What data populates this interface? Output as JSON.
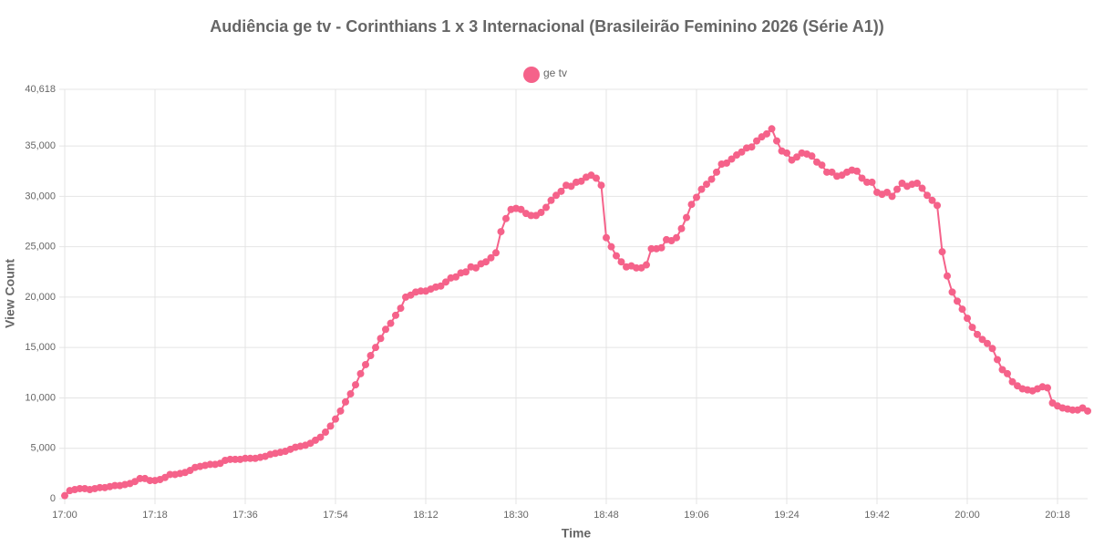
{
  "chart_data": {
    "type": "line",
    "title": "Audiência ge tv - Corinthians 1 x 3 Internacional (Brasileirão Feminino 2026 (Série A1))",
    "xlabel": "Time",
    "ylabel": "View Count",
    "x": [
      "17:00",
      "17:01",
      "17:02",
      "17:03",
      "17:04",
      "17:05",
      "17:06",
      "17:07",
      "17:08",
      "17:09",
      "17:10",
      "17:11",
      "17:12",
      "17:13",
      "17:14",
      "17:15",
      "17:16",
      "17:17",
      "17:18",
      "17:19",
      "17:20",
      "17:21",
      "17:22",
      "17:23",
      "17:24",
      "17:25",
      "17:26",
      "17:27",
      "17:28",
      "17:29",
      "17:30",
      "17:31",
      "17:32",
      "17:33",
      "17:34",
      "17:35",
      "17:36",
      "17:37",
      "17:38",
      "17:39",
      "17:40",
      "17:41",
      "17:42",
      "17:43",
      "17:44",
      "17:45",
      "17:46",
      "17:47",
      "17:48",
      "17:49",
      "17:50",
      "17:51",
      "17:52",
      "17:53",
      "17:54",
      "17:55",
      "17:56",
      "17:57",
      "17:58",
      "17:59",
      "18:00",
      "18:01",
      "18:02",
      "18:03",
      "18:04",
      "18:05",
      "18:06",
      "18:07",
      "18:08",
      "18:09",
      "18:10",
      "18:11",
      "18:12",
      "18:13",
      "18:14",
      "18:15",
      "18:16",
      "18:17",
      "18:18",
      "18:19",
      "18:20",
      "18:21",
      "18:22",
      "18:23",
      "18:24",
      "18:25",
      "18:26",
      "18:27",
      "18:28",
      "18:29",
      "18:30",
      "18:31",
      "18:32",
      "18:33",
      "18:34",
      "18:35",
      "18:36",
      "18:37",
      "18:38",
      "18:39",
      "18:40",
      "18:41",
      "18:42",
      "18:43",
      "18:44",
      "18:45",
      "18:46",
      "18:47",
      "18:48",
      "18:49",
      "18:50",
      "18:51",
      "18:52",
      "18:53",
      "18:54",
      "18:55",
      "18:56",
      "18:57",
      "18:58",
      "18:59",
      "19:00",
      "19:01",
      "19:02",
      "19:03",
      "19:04",
      "19:05",
      "19:06",
      "19:07",
      "19:08",
      "19:09",
      "19:10",
      "19:11",
      "19:12",
      "19:13",
      "19:14",
      "19:15",
      "19:16",
      "19:17",
      "19:18",
      "19:19",
      "19:20",
      "19:21",
      "19:22",
      "19:23",
      "19:24",
      "19:25",
      "19:26",
      "19:27",
      "19:28",
      "19:29",
      "19:30",
      "19:31",
      "19:32",
      "19:33",
      "19:34",
      "19:35",
      "19:36",
      "19:37",
      "19:38",
      "19:39",
      "19:40",
      "19:41",
      "19:42",
      "19:43",
      "19:44",
      "19:45",
      "19:46",
      "19:47",
      "19:48",
      "19:49",
      "19:50",
      "19:51",
      "19:52",
      "19:53",
      "19:54",
      "19:55",
      "19:56",
      "19:57",
      "19:58",
      "19:59",
      "20:00",
      "20:01",
      "20:02",
      "20:03",
      "20:04",
      "20:05",
      "20:06",
      "20:07",
      "20:08",
      "20:09",
      "20:10",
      "20:11",
      "20:12",
      "20:13",
      "20:14",
      "20:15",
      "20:16",
      "20:17",
      "20:18",
      "20:19",
      "20:20",
      "20:21",
      "20:22",
      "20:23",
      "20:24"
    ],
    "series": [
      {
        "name": "ge tv",
        "color": "#f5628a",
        "values": [
          300,
          800,
          900,
          1000,
          1000,
          900,
          1000,
          1100,
          1100,
          1200,
          1300,
          1300,
          1400,
          1500,
          1700,
          2000,
          2000,
          1800,
          1800,
          1900,
          2100,
          2400,
          2400,
          2500,
          2600,
          2800,
          3100,
          3200,
          3300,
          3400,
          3400,
          3500,
          3800,
          3900,
          3900,
          3900,
          4000,
          4000,
          4000,
          4100,
          4200,
          4400,
          4500,
          4600,
          4700,
          4900,
          5100,
          5200,
          5300,
          5500,
          5800,
          6100,
          6600,
          7200,
          7900,
          8700,
          9600,
          10400,
          11300,
          12400,
          13300,
          14200,
          15000,
          15900,
          16800,
          17400,
          18200,
          18900,
          20000,
          20200,
          20500,
          20600,
          20600,
          20800,
          21000,
          21100,
          21500,
          21900,
          22000,
          22400,
          22500,
          23000,
          22900,
          23300,
          23500,
          23900,
          24400,
          26500,
          27800,
          28700,
          28800,
          28700,
          28300,
          28100,
          28100,
          28400,
          28900,
          29600,
          30100,
          30500,
          31100,
          31000,
          31400,
          31500,
          31900,
          32100,
          31800,
          31100,
          25900,
          25000,
          24100,
          23500,
          23000,
          23100,
          22900,
          22900,
          23200,
          24800,
          24800,
          24900,
          25700,
          25600,
          25900,
          26800,
          27900,
          29200,
          29900,
          30700,
          31200,
          31700,
          32400,
          33200,
          33300,
          33700,
          34100,
          34400,
          34800,
          34900,
          35500,
          35900,
          36200,
          36700,
          35500,
          34500,
          34300,
          33600,
          33900,
          34300,
          34200,
          34000,
          33400,
          33100,
          32400,
          32400,
          32000,
          32100,
          32400,
          32600,
          32500,
          31800,
          31400,
          31400,
          30400,
          30200,
          30400,
          30000,
          30700,
          31300,
          31000,
          31200,
          31300,
          30800,
          30100,
          29600,
          29100,
          24500,
          22100,
          20500,
          19600,
          18800,
          17900,
          17000,
          16300,
          15800,
          15400,
          14900,
          13800,
          12800,
          12400,
          11600,
          11200,
          10900,
          10800,
          10700,
          10900,
          11100,
          11000,
          9500,
          9200,
          9000,
          8900,
          8800,
          8800,
          9000,
          8700
        ]
      }
    ],
    "xlim": [
      "17:00",
      "20:24"
    ],
    "xticks": [
      "17:00",
      "17:18",
      "17:36",
      "17:54",
      "18:12",
      "18:30",
      "18:48",
      "19:06",
      "19:24",
      "19:42",
      "20:00",
      "20:18"
    ],
    "ylim": [
      0,
      40618
    ],
    "yticks": [
      0,
      {
        "value": 5000,
        "label": "5,000"
      },
      {
        "value": 10000,
        "label": "10,000"
      },
      {
        "value": 15000,
        "label": "15,000"
      },
      {
        "value": 20000,
        "label": "20,000"
      },
      {
        "value": 25000,
        "label": "25,000"
      },
      {
        "value": 30000,
        "label": "30,000"
      },
      {
        "value": 35000,
        "label": "35,000"
      },
      {
        "value": 40618,
        "label": "40,618"
      }
    ],
    "grid": true,
    "legend": "top"
  }
}
